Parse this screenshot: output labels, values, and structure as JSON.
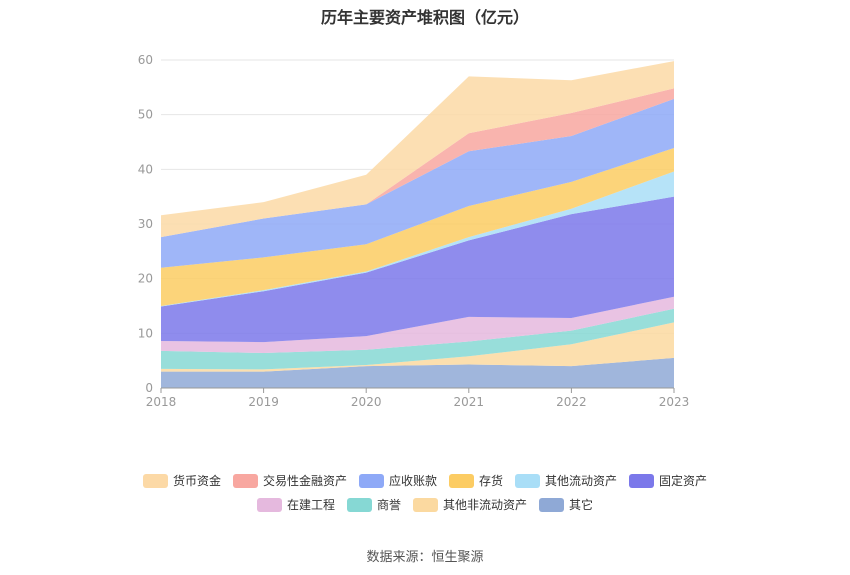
{
  "title": "历年主要资产堆积图（亿元）",
  "source": "数据来源：恒生聚源",
  "chart_data": {
    "type": "area",
    "stacked": true,
    "categories": [
      "2018",
      "2019",
      "2020",
      "2021",
      "2022",
      "2023"
    ],
    "ylim": [
      0,
      60
    ],
    "yticks": [
      "0",
      "10",
      "20",
      "30",
      "40",
      "50",
      "60"
    ],
    "grid": true,
    "legend_position": "bottom",
    "series": [
      {
        "name": "其它",
        "color": "#8fa9d6",
        "values": [
          3.0,
          3.0,
          4.0,
          4.3,
          4.0,
          5.5
        ]
      },
      {
        "name": "其他非流动资产",
        "color": "#fbd9a0",
        "values": [
          0.5,
          0.4,
          0.2,
          1.5,
          4.0,
          6.5
        ]
      },
      {
        "name": "商誉",
        "color": "#86d8d4",
        "values": [
          3.3,
          3.0,
          2.8,
          2.7,
          2.5,
          2.5
        ]
      },
      {
        "name": "在建工程",
        "color": "#e5b9de",
        "values": [
          1.8,
          2.0,
          2.5,
          4.5,
          2.3,
          2.2
        ]
      },
      {
        "name": "固定资产",
        "color": "#7b78ea",
        "values": [
          6.3,
          9.3,
          11.6,
          14.0,
          19.0,
          18.3
        ]
      },
      {
        "name": "其他流动资产",
        "color": "#a9def7",
        "values": [
          0.1,
          0.2,
          0.2,
          0.6,
          1.0,
          4.6
        ]
      },
      {
        "name": "存货",
        "color": "#fccc63",
        "values": [
          7.0,
          6.0,
          5.0,
          5.7,
          4.9,
          4.3
        ]
      },
      {
        "name": "应收账款",
        "color": "#8ea9f7",
        "values": [
          5.6,
          7.1,
          7.3,
          10.0,
          8.4,
          9.0
        ]
      },
      {
        "name": "交易性金融资产",
        "color": "#f8a7a0",
        "values": [
          0.0,
          0.0,
          0.0,
          3.3,
          4.2,
          1.9
        ]
      },
      {
        "name": "货币资金",
        "color": "#fcd9a6",
        "values": [
          4.0,
          3.0,
          5.4,
          10.4,
          6.0,
          5.0
        ]
      }
    ],
    "legend_order": [
      "货币资金",
      "交易性金融资产",
      "应收账款",
      "存货",
      "其他流动资产",
      "固定资产",
      "在建工程",
      "商誉",
      "其他非流动资产",
      "其它"
    ]
  }
}
